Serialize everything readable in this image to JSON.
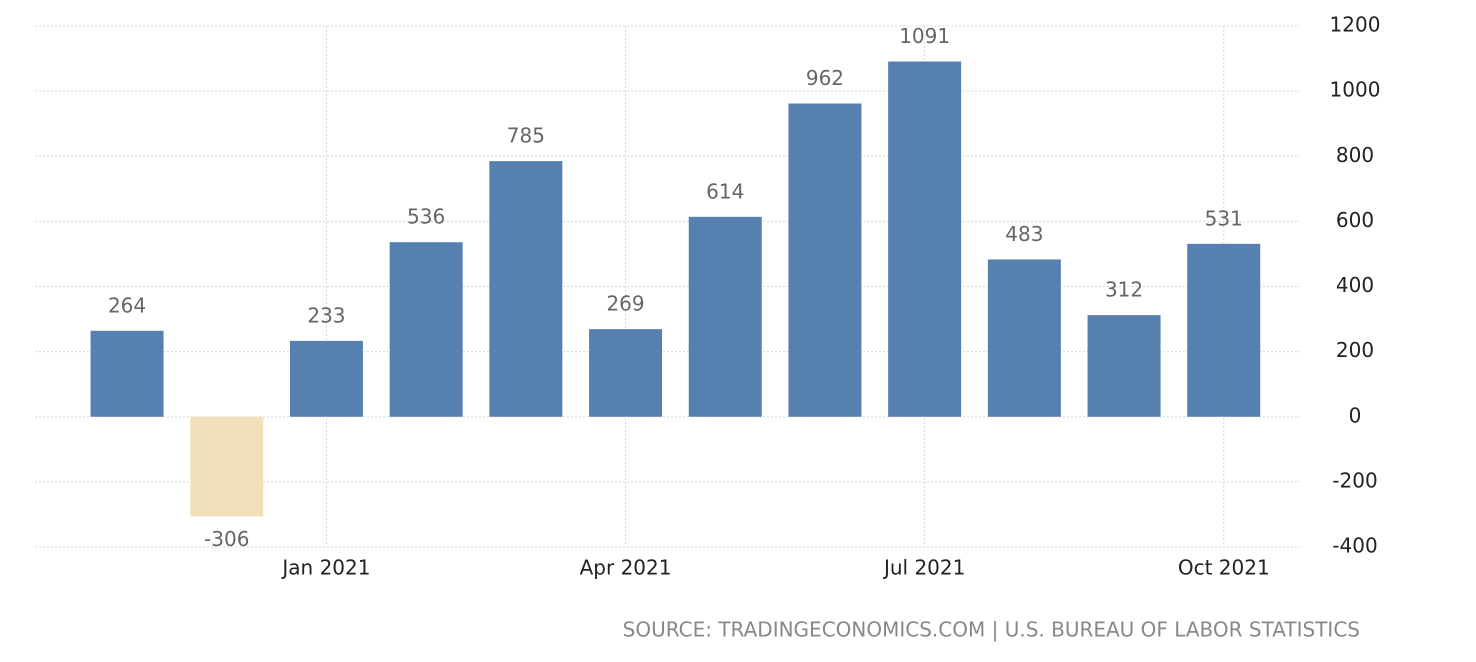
{
  "chart_data": {
    "type": "bar",
    "categories": [
      null,
      null,
      "Jan 2021",
      null,
      null,
      "Apr 2021",
      null,
      null,
      "Jul 2021",
      null,
      null,
      "Oct 2021"
    ],
    "values": [
      264,
      -306,
      233,
      536,
      785,
      269,
      614,
      962,
      1091,
      483,
      312,
      531
    ],
    "color": "#5580b0",
    "negative_color": "#f0dfb8",
    "ylim": [
      -400,
      1200
    ],
    "yticks": [
      -400,
      -200,
      0,
      200,
      400,
      600,
      800,
      1000,
      1200
    ],
    "grid": true,
    "y_axis_side": "right",
    "source": "SOURCE: TRADINGECONOMICS.COM | U.S. BUREAU OF LABOR STATISTICS"
  }
}
